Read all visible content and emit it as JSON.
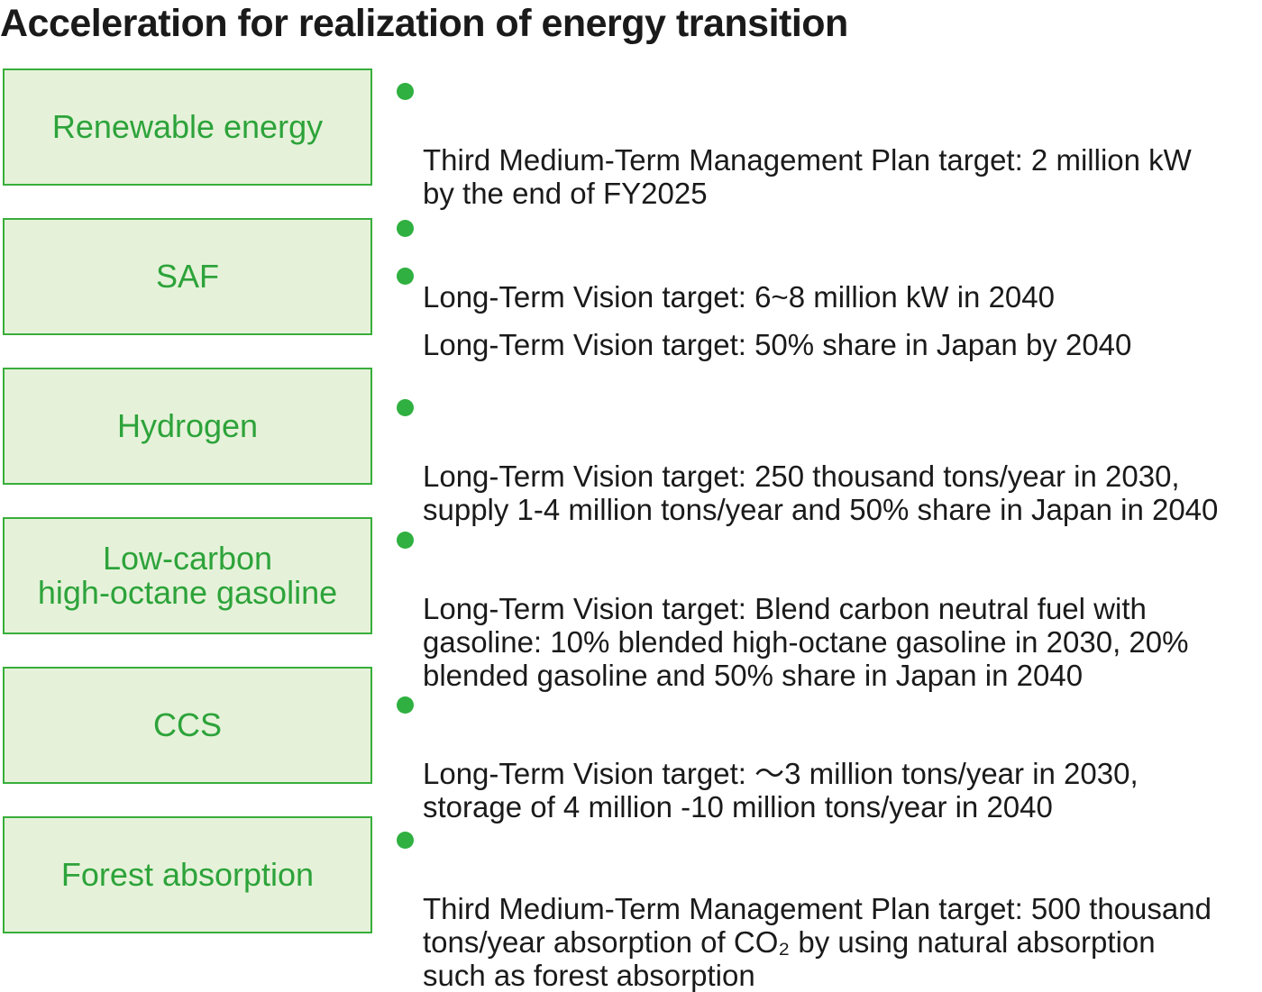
{
  "title": "Acceleration for realization of energy transition",
  "colors": {
    "box_border": "#38ae3b",
    "box_fill": "#e5f2d9",
    "box_text": "#2da33a",
    "bullet_dot": "#2fb040",
    "text": "#1a1a1a"
  },
  "rows": [
    {
      "category": "Renewable energy",
      "bullets": [
        "Third Medium-Term Management Plan target: 2 million kW\n by the end of FY2025",
        "Long-Term Vision target: 6~8 million kW in 2040"
      ]
    },
    {
      "category": "SAF",
      "bullets": [
        "Long-Term Vision target: 50% share in Japan by 2040"
      ]
    },
    {
      "category": "Hydrogen",
      "bullets": [
        "Long-Term Vision target: 250 thousand tons/year in 2030,\n supply 1-4 million tons/year and 50% share in Japan in 2040"
      ]
    },
    {
      "category": "Low-carbon\nhigh-octane gasoline",
      "bullets": [
        "Long-Term Vision target: Blend carbon neutral fuel with\n gasoline: 10% blended high-octane gasoline in 2030, 20%\n blended gasoline and 50% share in Japan in 2040"
      ]
    },
    {
      "category": "CCS",
      "bullets": [
        "Long-Term Vision target: ～3 million tons/year in 2030,\n storage of 4 million -10 million tons/year in 2040"
      ]
    },
    {
      "category": "Forest absorption",
      "bullets": [
        "Third Medium-Term Management Plan target: 500 thousand\n tons/year absorption of CO₂ by using natural absorption\n such as forest absorption"
      ]
    }
  ]
}
